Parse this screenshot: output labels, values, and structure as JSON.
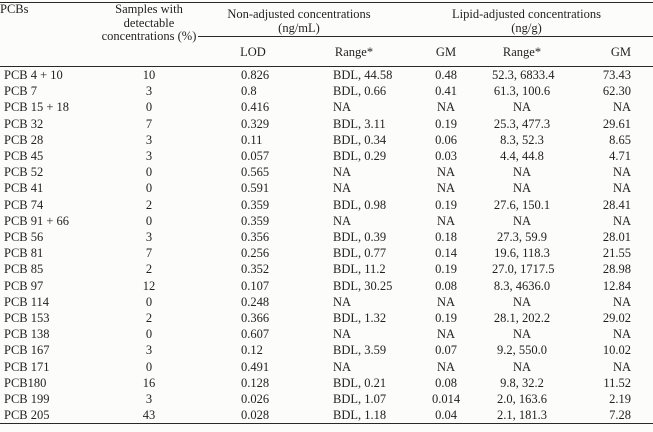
{
  "page": {
    "background_color": "#fcfcfb",
    "text_color": "#221f20",
    "rule_color": "#2b2829"
  },
  "table": {
    "columns": {
      "pcbs": "PCBs",
      "samples": "Samples with detectable concentrations (%)",
      "nonadjusted_group": "Non-adjusted concentrations (ng/mL)",
      "lipid_group": "Lipid-adjusted concentrations (ng/g)",
      "sub": {
        "lod": "LOD",
        "range_na": "Range*",
        "gm_na": "GM",
        "range_la": "Range*",
        "gm_la": "GM"
      }
    },
    "rows": [
      {
        "pcb": "PCB 4 + 10",
        "pct": "10",
        "lod": "0.826",
        "range_na": "BDL, 44.58",
        "gm_na": "0.48",
        "range_la": "52.3, 6833.4",
        "gm_la": "73.43"
      },
      {
        "pcb": "PCB 7",
        "pct": "3",
        "lod": "0.8",
        "range_na": "BDL, 0.66",
        "gm_na": "0.41",
        "range_la": "61.3, 100.6",
        "gm_la": "62.30"
      },
      {
        "pcb": "PCB 15 + 18",
        "pct": "0",
        "lod": "0.416",
        "range_na": "NA",
        "gm_na": "NA",
        "range_la": "NA",
        "gm_la": "NA"
      },
      {
        "pcb": "PCB 32",
        "pct": "7",
        "lod": "0.329",
        "range_na": "BDL, 3.11",
        "gm_na": "0.19",
        "range_la": "25.3, 477.3",
        "gm_la": "29.61"
      },
      {
        "pcb": "PCB 28",
        "pct": "3",
        "lod": "0.11",
        "range_na": "BDL, 0.34",
        "gm_na": "0.06",
        "range_la": "8.3, 52.3",
        "gm_la": "8.65"
      },
      {
        "pcb": "PCB 45",
        "pct": "3",
        "lod": "0.057",
        "range_na": "BDL, 0.29",
        "gm_na": "0.03",
        "range_la": "4.4, 44.8",
        "gm_la": "4.71"
      },
      {
        "pcb": "PCB 52",
        "pct": "0",
        "lod": "0.565",
        "range_na": "NA",
        "gm_na": "NA",
        "range_la": "NA",
        "gm_la": "NA"
      },
      {
        "pcb": "PCB 41",
        "pct": "0",
        "lod": "0.591",
        "range_na": "NA",
        "gm_na": "NA",
        "range_la": "NA",
        "gm_la": "NA"
      },
      {
        "pcb": "PCB 74",
        "pct": "2",
        "lod": "0.359",
        "range_na": "BDL, 0.98",
        "gm_na": "0.19",
        "range_la": "27.6, 150.1",
        "gm_la": "28.41"
      },
      {
        "pcb": "PCB 91 + 66",
        "pct": "0",
        "lod": "0.359",
        "range_na": "NA",
        "gm_na": "NA",
        "range_la": "NA",
        "gm_la": "NA"
      },
      {
        "pcb": "PCB 56",
        "pct": "3",
        "lod": "0.356",
        "range_na": "BDL, 0.39",
        "gm_na": "0.18",
        "range_la": "27.3, 59.9",
        "gm_la": "28.01"
      },
      {
        "pcb": "PCB 81",
        "pct": "7",
        "lod": "0.256",
        "range_na": "BDL, 0.77",
        "gm_na": "0.14",
        "range_la": "19.6, 118.3",
        "gm_la": "21.55"
      },
      {
        "pcb": "PCB 85",
        "pct": "2",
        "lod": "0.352",
        "range_na": "BDL, 11.2",
        "gm_na": "0.19",
        "range_la": "27.0, 1717.5",
        "gm_la": "28.98"
      },
      {
        "pcb": "PCB 97",
        "pct": "12",
        "lod": "0.107",
        "range_na": "BDL, 30.25",
        "gm_na": "0.08",
        "range_la": "8.3, 4636.0",
        "gm_la": "12.84"
      },
      {
        "pcb": "PCB 114",
        "pct": "0",
        "lod": "0.248",
        "range_na": "NA",
        "gm_na": "NA",
        "range_la": "NA",
        "gm_la": "NA"
      },
      {
        "pcb": "PCB 153",
        "pct": "2",
        "lod": "0.366",
        "range_na": "BDL, 1.32",
        "gm_na": "0.19",
        "range_la": "28.1, 202.2",
        "gm_la": "29.02"
      },
      {
        "pcb": "PCB 138",
        "pct": "0",
        "lod": "0.607",
        "range_na": "NA",
        "gm_na": "NA",
        "range_la": "NA",
        "gm_la": "NA"
      },
      {
        "pcb": "PCB 167",
        "pct": "3",
        "lod": "0.12",
        "range_na": "BDL, 3.59",
        "gm_na": "0.07",
        "range_la": "9.2, 550.0",
        "gm_la": "10.02"
      },
      {
        "pcb": "PCB 171",
        "pct": "0",
        "lod": "0.491",
        "range_na": "NA",
        "gm_na": "NA",
        "range_la": "NA",
        "gm_la": "NA"
      },
      {
        "pcb": "PCB180",
        "pct": "16",
        "lod": "0.128",
        "range_na": "BDL, 0.21",
        "gm_na": "0.08",
        "range_la": "9.8, 32.2",
        "gm_la": "11.52"
      },
      {
        "pcb": "PCB 199",
        "pct": "3",
        "lod": "0.026",
        "range_na": "BDL, 1.07",
        "gm_na": "0.014",
        "range_la": "2.0, 163.6",
        "gm_la": "2.19"
      },
      {
        "pcb": "PCB 205",
        "pct": "43",
        "lod": "0.028",
        "range_na": "BDL, 1.18",
        "gm_na": "0.04",
        "range_la": "2.1, 181.3",
        "gm_la": "7.28"
      }
    ]
  }
}
